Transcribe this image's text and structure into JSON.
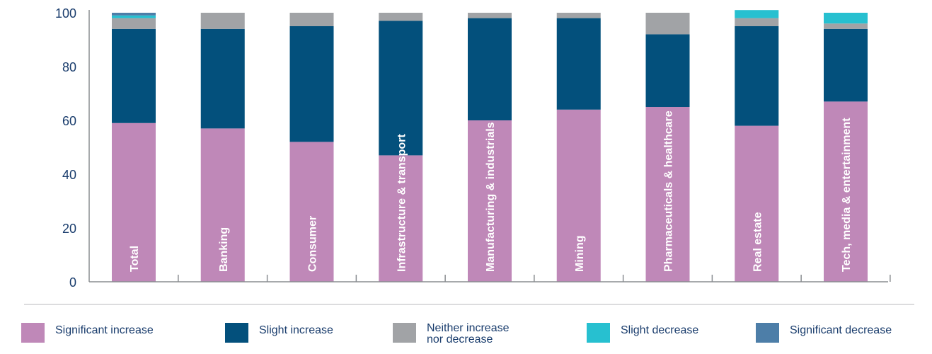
{
  "chart_data": {
    "type": "bar",
    "stacked": true,
    "orientation": "vertical",
    "title": "",
    "xlabel": "",
    "ylabel": "",
    "ylim": [
      0,
      100
    ],
    "yticks": [
      0,
      20,
      40,
      60,
      80,
      100
    ],
    "grid": false,
    "legend_position": "bottom",
    "categories": [
      "Total",
      "Banking",
      "Consumer",
      "Infrastructure & transport",
      "Manufacturing & industrials",
      "Mining",
      "Pharmaceuticals & healthcare",
      "Real estate",
      "Tech, media & entertainment"
    ],
    "series": [
      {
        "name": "Significant increase",
        "color": "#bf88b8",
        "values": [
          59,
          57,
          52,
          47,
          60,
          64,
          65,
          58,
          67
        ]
      },
      {
        "name": "Slight increase",
        "color": "#03507c",
        "values": [
          35,
          37,
          43,
          50,
          38,
          34,
          27,
          37,
          27
        ]
      },
      {
        "name": "Neither increase nor decrease",
        "color": "#a1a3a6",
        "values": [
          4,
          6,
          5,
          3,
          2,
          2,
          8,
          3,
          2
        ]
      },
      {
        "name": "Slight decrease",
        "color": "#27c0d0",
        "values": [
          1,
          0,
          0,
          0,
          0,
          0,
          0,
          3,
          4
        ]
      },
      {
        "name": "Significant decrease",
        "color": "#4d7ea8",
        "values": [
          1,
          0,
          0,
          0,
          0,
          0,
          0,
          0,
          0
        ]
      }
    ]
  },
  "legend": {
    "items": [
      {
        "lines": [
          "Significant increase"
        ]
      },
      {
        "lines": [
          "Slight increase"
        ]
      },
      {
        "lines": [
          "Neither increase",
          "nor decrease"
        ]
      },
      {
        "lines": [
          "Slight decrease"
        ]
      },
      {
        "lines": [
          "Significant decrease"
        ]
      }
    ]
  },
  "colors": {
    "axis": "#8a8d91",
    "tick_label": "#1a3d6d",
    "category_label": "#ffffff"
  }
}
